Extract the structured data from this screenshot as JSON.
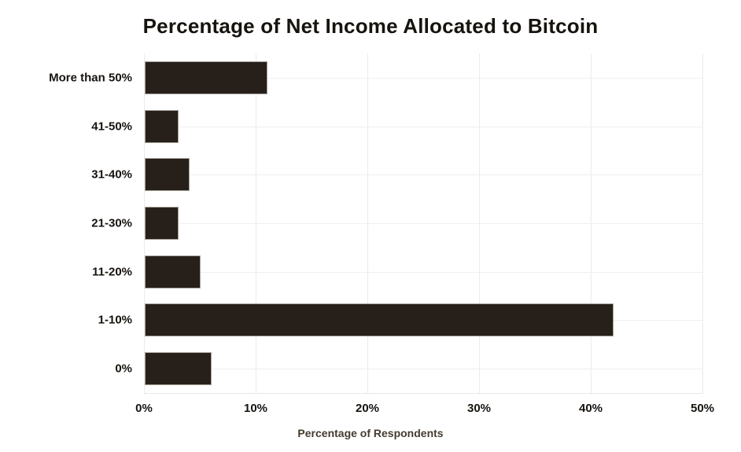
{
  "chart_data": {
    "type": "bar",
    "orientation": "horizontal",
    "title": "Percentage of Net Income Allocated to Bitcoin",
    "xlabel": "Percentage of Respondents",
    "ylabel": "",
    "categories": [
      "More than 50%",
      "41-50%",
      "31-40%",
      "21-30%",
      "11-20%",
      "1-10%",
      "0%"
    ],
    "values": [
      11,
      3,
      4,
      3,
      5,
      42,
      6
    ],
    "xlim": [
      0,
      50
    ],
    "x_tick_values": [
      0,
      10,
      20,
      30,
      40,
      50
    ],
    "x_tick_labels": [
      "0%",
      "10%",
      "20%",
      "30%",
      "40%",
      "50%"
    ],
    "grid": true,
    "legend": "none",
    "colors": {
      "bar_fill": "#27201a",
      "bar_border": "#a8a29b",
      "grid_line": "#ebebeb",
      "title_text": "#17130e",
      "tick_text": "#17130e",
      "axis_label_text": "#443b30",
      "background": "#ffffff"
    }
  }
}
